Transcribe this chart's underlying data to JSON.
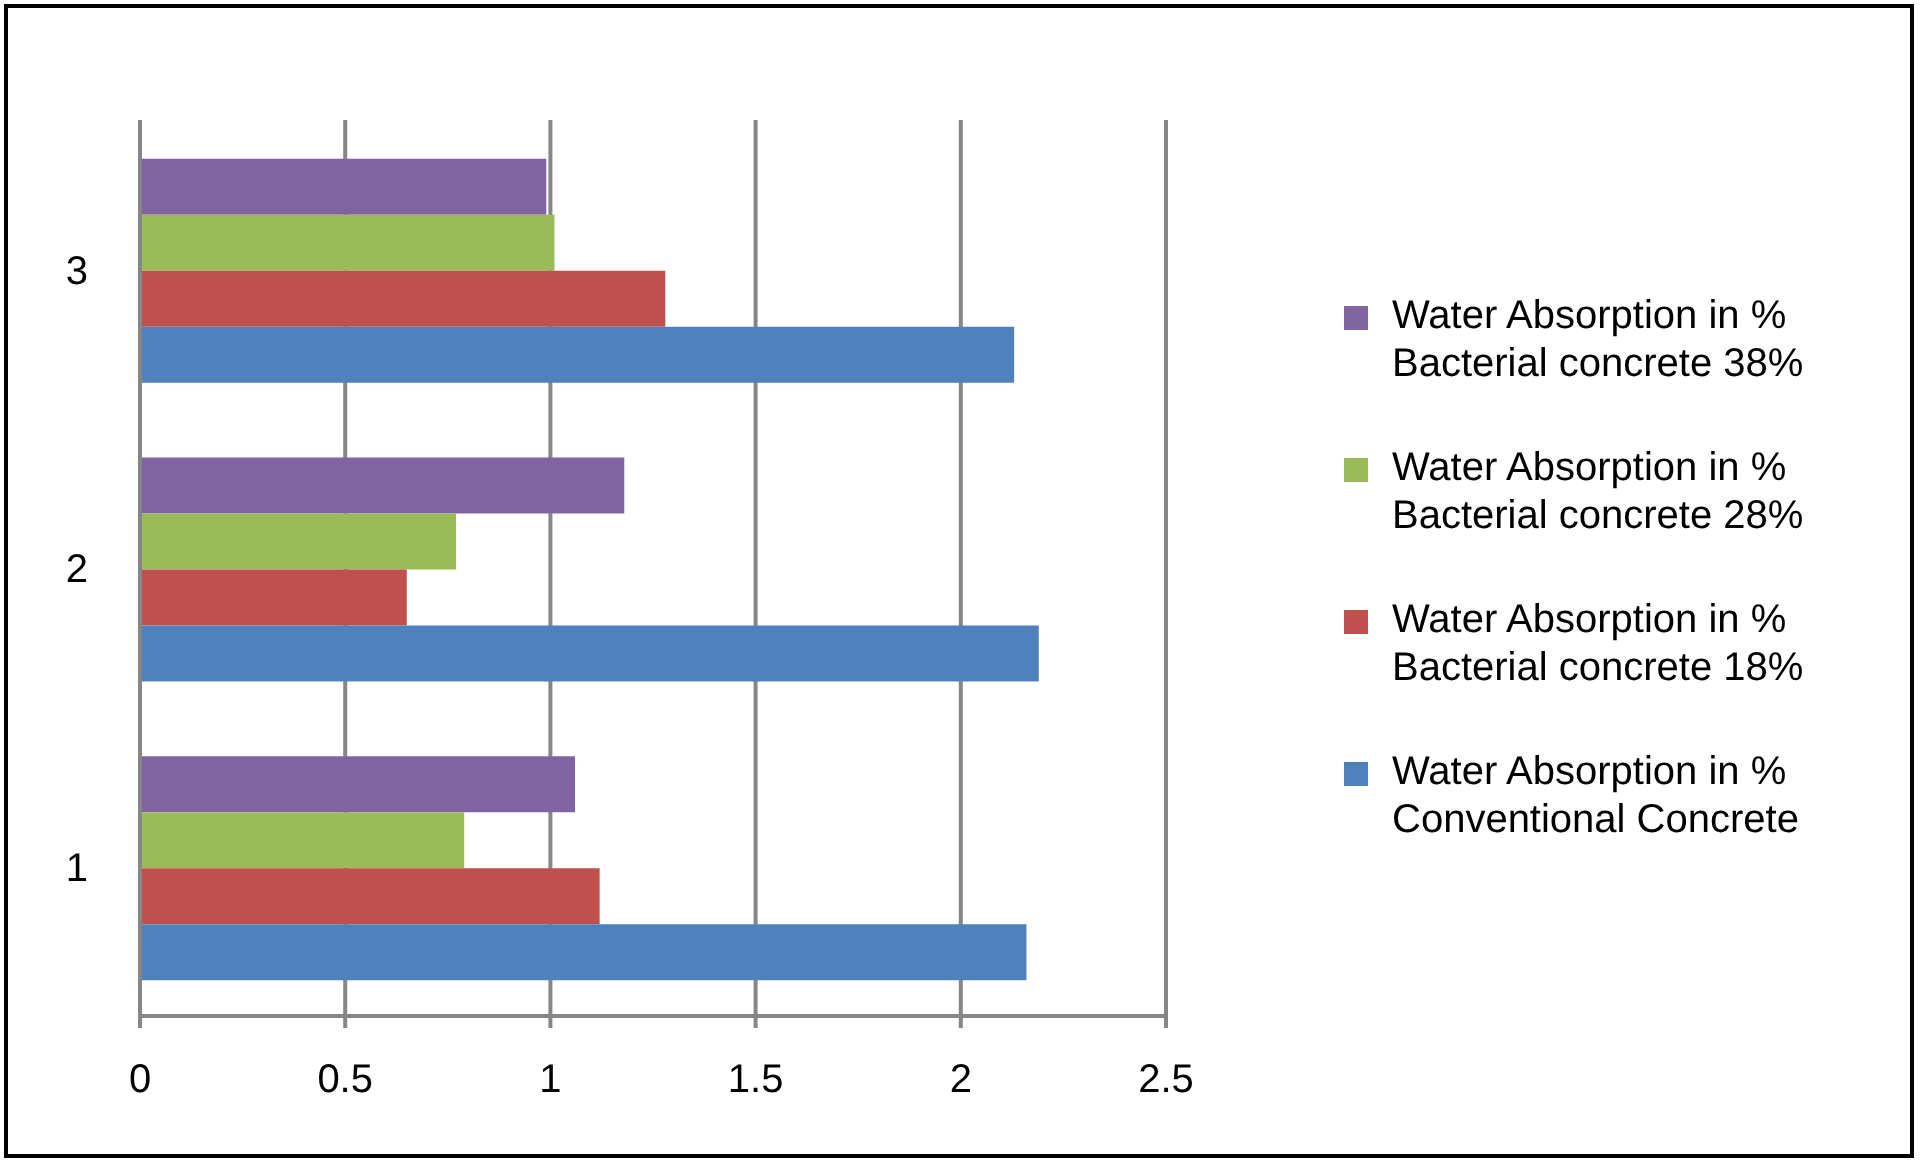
{
  "chart_data": {
    "type": "bar",
    "orientation": "horizontal",
    "categories": [
      "3",
      "2",
      "1"
    ],
    "series": [
      {
        "name": "Water Absorption in % Bacterial concrete 38%",
        "color": "#8064a2",
        "values": [
          0.99,
          1.18,
          1.06
        ]
      },
      {
        "name": "Water Absorption in % Bacterial concrete 28%",
        "color": "#9bbb59",
        "values": [
          1.01,
          0.77,
          0.79
        ]
      },
      {
        "name": "Water Absorption in % Bacterial concrete 18%",
        "color": "#c0504d",
        "values": [
          1.28,
          0.65,
          1.12
        ]
      },
      {
        "name": "Water Absorption in % Conventional Concrete",
        "color": "#4f81bd",
        "values": [
          2.13,
          2.19,
          2.16
        ]
      }
    ],
    "xlim": [
      0,
      2.5
    ],
    "xticks": [
      0,
      0.5,
      1,
      1.5,
      2,
      2.5
    ],
    "grid": "x",
    "legend": "right"
  }
}
